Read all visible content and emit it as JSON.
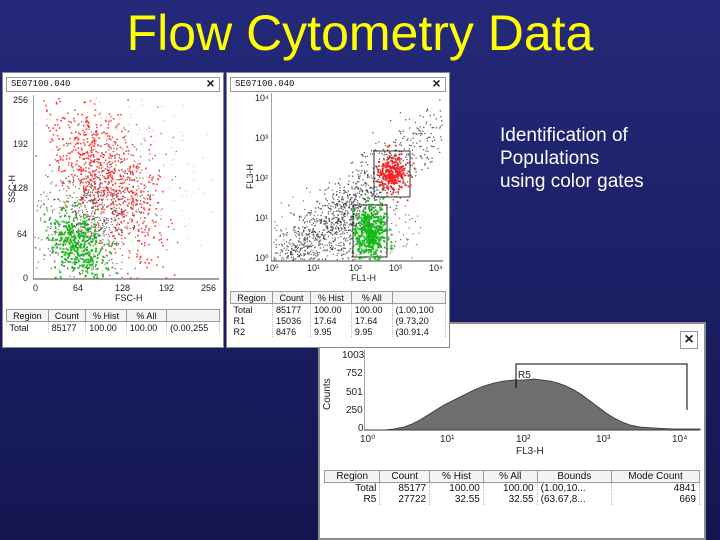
{
  "slide": {
    "title": "Flow Cytometry Data",
    "annotation_lines": [
      "Identification of",
      "Populations",
      "using color gates"
    ]
  },
  "colors": {
    "title": "#ffff00",
    "gate_red": "#ff2020",
    "gate_green": "#14b814",
    "background": "#1f2370"
  },
  "win1": {
    "file": "SE07100.040",
    "close": "×",
    "y_ticks": [
      "256",
      "192",
      "128",
      "64",
      "0"
    ],
    "x_ticks": [
      "0",
      "64",
      "128",
      "192",
      "256"
    ],
    "y_axis_label": "SSC-H",
    "x_axis_label": "FSC-H",
    "stats": {
      "headers": [
        "Region",
        "Count",
        "% Hist",
        "% All",
        ""
      ],
      "rows": [
        [
          "Total",
          "85177",
          "100.00",
          "100.00",
          "(0.00,255"
        ]
      ]
    }
  },
  "win2": {
    "file": "SE07100.040",
    "close": "×",
    "y_ticks": [
      "10⁴",
      "10³",
      "10²",
      "10¹",
      "10⁰"
    ],
    "x_ticks": [
      "10⁰",
      "10¹",
      "10²",
      "10³",
      "10⁴"
    ],
    "y_axis_label": "FL3-H",
    "x_axis_label": "FL1-H",
    "stats": {
      "headers": [
        "Region",
        "Count",
        "% Hist",
        "% All",
        ""
      ],
      "rows": [
        [
          "Total",
          "85177",
          "100.00",
          "100.00",
          "(1.00,100"
        ],
        [
          "R1",
          "15036",
          "17.64",
          "17.64",
          "(9.73,20"
        ],
        [
          "R2",
          "8476",
          "9.95",
          "9.95",
          "(30.91,4"
        ]
      ]
    }
  },
  "win3": {
    "close": "×",
    "y_ticks": [
      "1003",
      "752",
      "501",
      "250",
      "0"
    ],
    "x_ticks": [
      "10⁰",
      "10¹",
      "10²",
      "10³",
      "10⁴"
    ],
    "y_axis_label": "Counts",
    "x_axis_label": "FL3-H",
    "gate_label": "R5",
    "stats": {
      "headers": [
        "Region",
        "Count",
        "% Hist",
        "% All",
        "Bounds",
        "Mode Count"
      ],
      "rows": [
        [
          "Total",
          "85177",
          "100.00",
          "100.00",
          "(1.00,10...",
          "4841"
        ],
        [
          "R5",
          "27722",
          "32.55",
          "32.55",
          "(63.67,8...",
          "669"
        ]
      ]
    }
  }
}
